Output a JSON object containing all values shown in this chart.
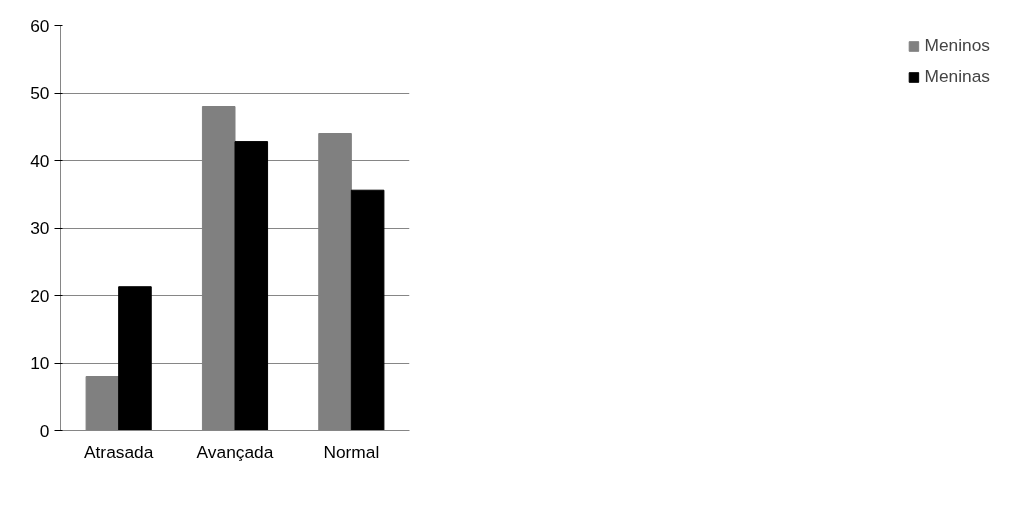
{
  "chart_data": {
    "type": "bar",
    "categories": [
      "Atrasada",
      "Avançada",
      "Normal"
    ],
    "series": [
      {
        "name": "Meninos",
        "color": "#808080",
        "values": [
          8,
          48,
          44
        ]
      },
      {
        "name": "Meninas",
        "color": "#000000",
        "values": [
          21.3,
          42.8,
          35.6
        ]
      }
    ],
    "ylim": [
      0,
      60
    ],
    "yticks": [
      0,
      10,
      20,
      30,
      40,
      50,
      60
    ],
    "grid": "y",
    "legend": "right"
  }
}
